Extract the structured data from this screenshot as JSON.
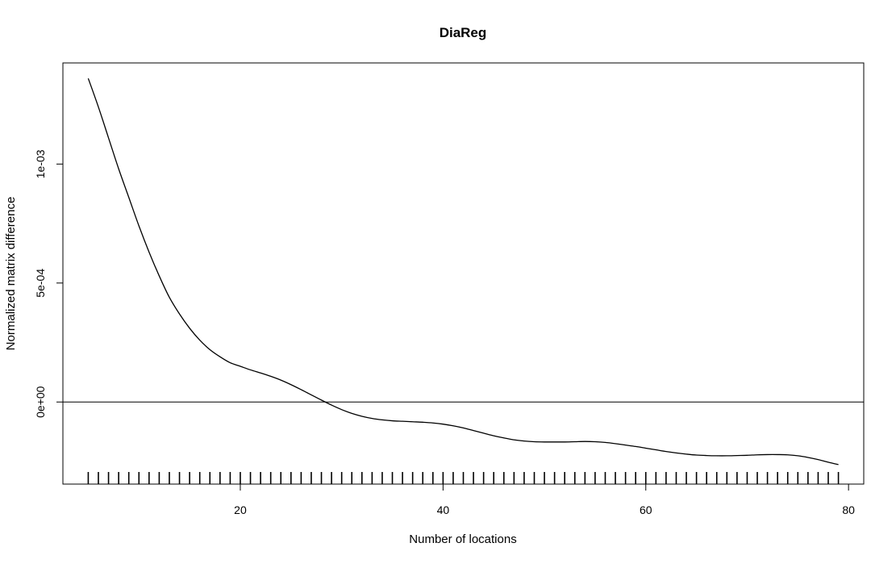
{
  "chart_data": {
    "type": "line",
    "title": "DiaReg",
    "xlabel": "Number of locations",
    "ylabel": "Normalized matrix difference",
    "xlim": [
      2.5,
      81.5
    ],
    "ylim": [
      -0.000345,
      0.001425
    ],
    "x_ticks": [
      20,
      40,
      60,
      80
    ],
    "x_tick_labels": [
      "20",
      "40",
      "60",
      "80"
    ],
    "y_ticks": [
      0,
      0.0005,
      0.001
    ],
    "y_tick_labels": [
      "0e+00",
      "5e-04",
      "1e-03"
    ],
    "reference_line_y": 0,
    "grid": false,
    "legend": "none",
    "series": [
      {
        "x": [
          5,
          6,
          7,
          8,
          9,
          10,
          11,
          12,
          13,
          14,
          15,
          16,
          17,
          18,
          19,
          20,
          21,
          22,
          23,
          24,
          25,
          26,
          27,
          28,
          29,
          30,
          31,
          32,
          33,
          34,
          35,
          36,
          37,
          38,
          39,
          40,
          41,
          42,
          43,
          44,
          45,
          46,
          47,
          48,
          49,
          50,
          51,
          52,
          53,
          54,
          55,
          56,
          57,
          58,
          59,
          60,
          61,
          62,
          63,
          64,
          65,
          66,
          67,
          68,
          69,
          70,
          71,
          72,
          73,
          74,
          75,
          76,
          77,
          78,
          79
        ],
        "y": [
          0.00136,
          0.00124,
          0.00111,
          0.00098,
          0.00086,
          0.00074,
          0.00063,
          0.00053,
          0.00044,
          0.00037,
          0.00031,
          0.00026,
          0.00022,
          0.00019,
          0.000165,
          0.00015,
          0.000135,
          0.000122,
          0.000108,
          9.2e-05,
          7.3e-05,
          5.2e-05,
          3e-05,
          8e-06,
          -1.3e-05,
          -3.2e-05,
          -4.8e-05,
          -6e-05,
          -6.9e-05,
          -7.5e-05,
          -7.9e-05,
          -8.1e-05,
          -8.3e-05,
          -8.5e-05,
          -8.8e-05,
          -9.3e-05,
          -0.0001,
          -0.000109,
          -0.00012,
          -0.000131,
          -0.000142,
          -0.000151,
          -0.000159,
          -0.000164,
          -0.000167,
          -0.000168,
          -0.000168,
          -0.000168,
          -0.000167,
          -0.000166,
          -0.000167,
          -0.00017,
          -0.000175,
          -0.000181,
          -0.000187,
          -0.000194,
          -0.000201,
          -0.000208,
          -0.000214,
          -0.000219,
          -0.000223,
          -0.000225,
          -0.000226,
          -0.000226,
          -0.000225,
          -0.000224,
          -0.000222,
          -0.000221,
          -0.000221,
          -0.000222,
          -0.000226,
          -0.000233,
          -0.000242,
          -0.000253,
          -0.000263
        ]
      }
    ],
    "rug_x": [
      5,
      6,
      7,
      8,
      9,
      10,
      11,
      12,
      13,
      14,
      15,
      16,
      17,
      18,
      19,
      20,
      21,
      22,
      23,
      24,
      25,
      26,
      27,
      28,
      29,
      30,
      31,
      32,
      33,
      34,
      35,
      36,
      37,
      38,
      39,
      40,
      41,
      42,
      43,
      44,
      45,
      46,
      47,
      48,
      49,
      50,
      51,
      52,
      53,
      54,
      55,
      56,
      57,
      58,
      59,
      60,
      61,
      62,
      63,
      64,
      65,
      66,
      67,
      68,
      69,
      70,
      71,
      72,
      73,
      74,
      75,
      76,
      77,
      78,
      79
    ]
  }
}
